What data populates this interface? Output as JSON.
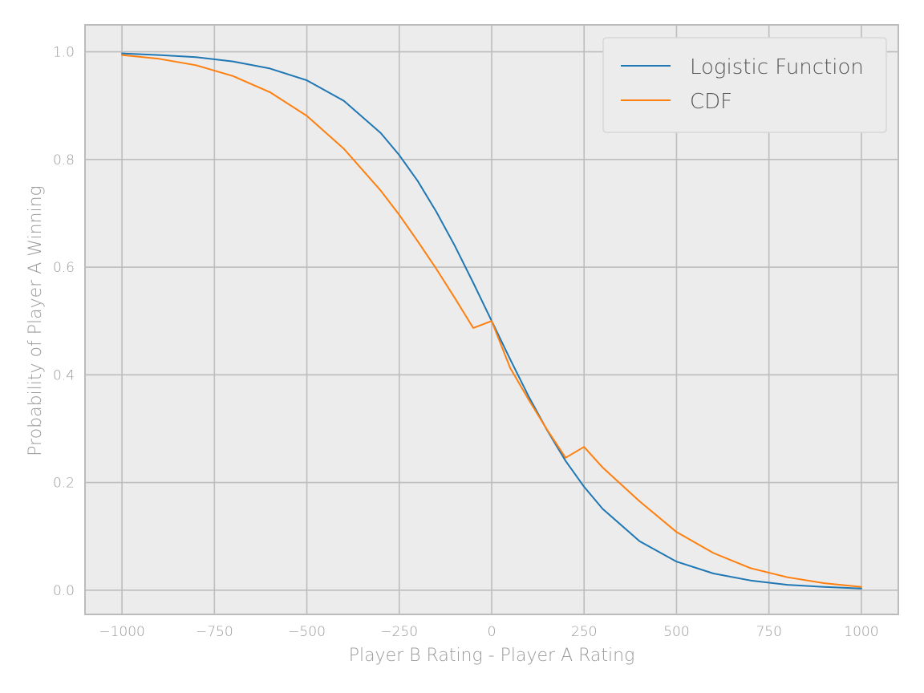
{
  "chart_data": {
    "type": "line",
    "title": "",
    "xlabel": "Player B Rating - Player A Rating",
    "ylabel": "Probability of Player A Winning",
    "xlim": [
      -1100,
      1100
    ],
    "ylim": [
      -0.045,
      1.05
    ],
    "xticks": [
      -1000,
      -750,
      -500,
      -250,
      0,
      250,
      500,
      750,
      1000
    ],
    "xtick_labels": [
      "−1000",
      "−750",
      "−500",
      "−250",
      "0",
      "250",
      "500",
      "750",
      "1000"
    ],
    "yticks": [
      0.0,
      0.2,
      0.4,
      0.6,
      0.8,
      1.0
    ],
    "ytick_labels": [
      "0.0",
      "0.2",
      "0.4",
      "0.6",
      "0.8",
      "1.0"
    ],
    "grid": true,
    "legend_position": "top-right",
    "x": [
      -1000,
      -900,
      -800,
      -700,
      -600,
      -500,
      -400,
      -300,
      -250,
      -200,
      -150,
      -100,
      -50,
      0,
      50,
      100,
      150,
      200,
      250,
      300,
      400,
      500,
      600,
      700,
      800,
      900,
      1000
    ],
    "series": [
      {
        "name": "Logistic Function",
        "color": "#1f77b4",
        "values": [
          0.997,
          0.994,
          0.99,
          0.982,
          0.969,
          0.947,
          0.909,
          0.849,
          0.808,
          0.76,
          0.703,
          0.64,
          0.571,
          0.5,
          0.429,
          0.36,
          0.297,
          0.24,
          0.192,
          0.151,
          0.091,
          0.053,
          0.031,
          0.018,
          0.01,
          0.006,
          0.003
        ]
      },
      {
        "name": "CDF",
        "color": "#ff7f0e",
        "values": [
          0.994,
          0.987,
          0.975,
          0.955,
          0.925,
          0.881,
          0.82,
          0.742,
          0.697,
          0.648,
          0.597,
          0.543,
          0.487,
          0.5,
          0.413,
          0.354,
          0.298,
          0.246,
          0.266,
          0.228,
          0.165,
          0.108,
          0.069,
          0.041,
          0.024,
          0.013,
          0.006
        ]
      }
    ]
  }
}
